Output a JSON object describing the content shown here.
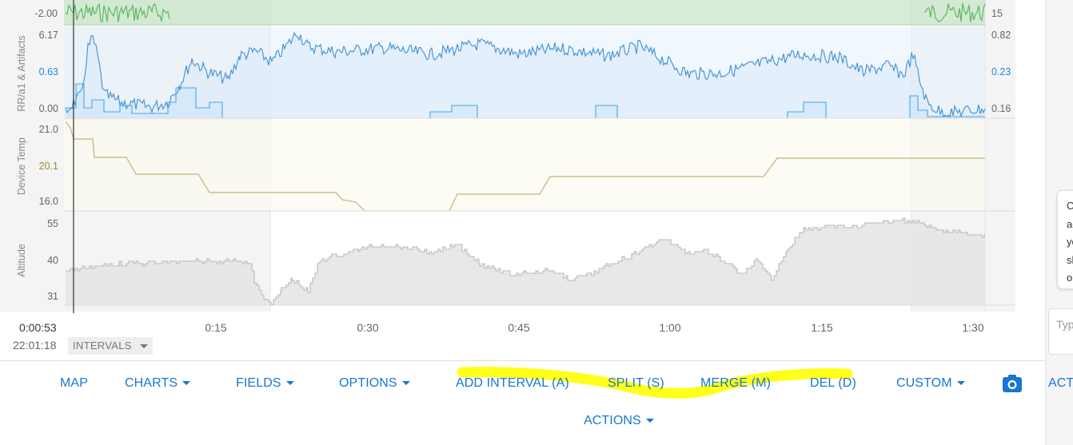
{
  "charts": {
    "top_panel": {
      "left_value": "-2.00",
      "right_value": "15"
    },
    "rr": {
      "title": "RR/a1 & Artifacts",
      "left_top": "6.17",
      "left_mid": "0.63",
      "left_bottom": "0.00",
      "right_top": "0.82",
      "right_mid": "0.23",
      "right_bottom": "0.16"
    },
    "temp": {
      "title": "Device Temp",
      "top": "21.0",
      "mid": "20.1",
      "bottom": "16.0"
    },
    "altitude": {
      "title": "Altitude",
      "top": "55",
      "mid": "40",
      "bottom": "31"
    },
    "x_ticks": [
      "0:15",
      "0:30",
      "0:45",
      "1:00",
      "1:15",
      "1:30"
    ],
    "cursor_time": "0:00:53",
    "clock_time": "22:01:18",
    "intervals_label": "INTERVALS"
  },
  "toolbar": {
    "map": "MAP",
    "charts": "CHARTS",
    "fields": "FIELDS",
    "options": "OPTIONS",
    "add_interval": "ADD INTERVAL (A)",
    "split": "SPLIT (S)",
    "merge": "MERGE (M)",
    "del": "DEL (D)",
    "custom": "CUSTOM",
    "act": "ACT",
    "actions": "ACTIONS",
    "camera_icon": "camera-icon"
  },
  "side_panel": {
    "tooltip_text": "C\nac\nyo\nsh\no",
    "type_placeholder": "Typ"
  },
  "colors": {
    "accent": "#1976d2",
    "highlight": "#ffff00",
    "rr_line": "#3f8fd6",
    "artifacts_line": "#45a5ee",
    "temp_line": "#c2b47a",
    "temp_label": "#9a8a3a",
    "altitude_line": "#b8b8b8",
    "top_green": "#5fb85f"
  }
}
